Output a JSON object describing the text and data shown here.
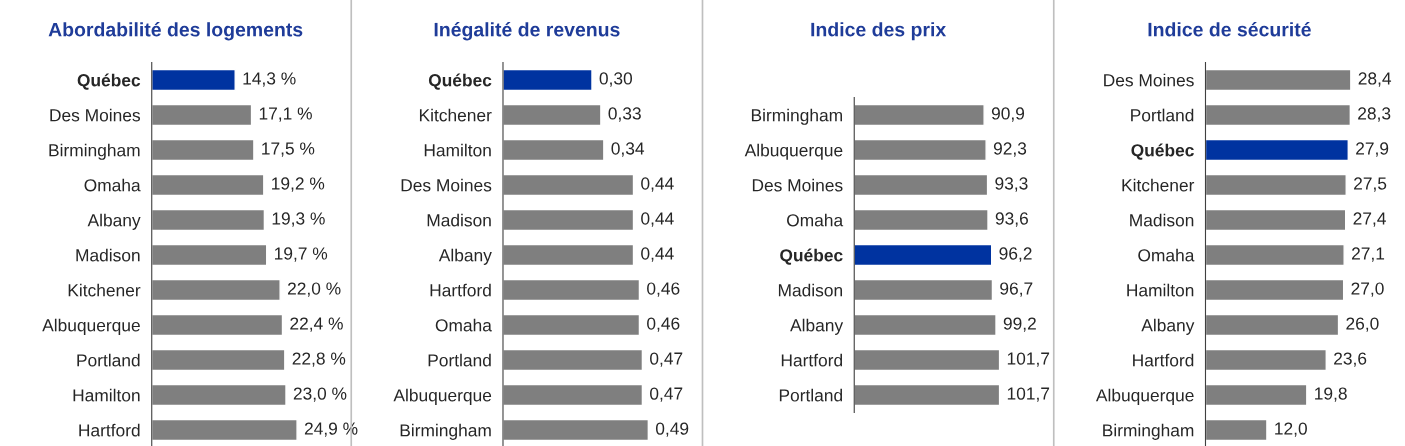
{
  "chart_data": [
    {
      "type": "bar",
      "orientation": "horizontal",
      "title": "Abordabilité des logements",
      "categories": [
        "Québec",
        "Des Moines",
        "Birmingham",
        "Omaha",
        "Albany",
        "Madison",
        "Kitchener",
        "Albuquerque",
        "Portland",
        "Hamilton",
        "Hartford"
      ],
      "values": [
        14.3,
        17.1,
        17.5,
        19.2,
        19.3,
        19.7,
        22.0,
        22.4,
        22.8,
        23.0,
        24.9
      ],
      "value_labels": [
        "14,3 %",
        "17,1 %",
        "17,5 %",
        "19,2 %",
        "19,3 %",
        "19,7 %",
        "22,0 %",
        "22,4 %",
        "22,8 %",
        "23,0 %",
        "24,9 %"
      ],
      "colors": [
        "#0033a0",
        "#7f7f7f",
        "#7f7f7f",
        "#7f7f7f",
        "#7f7f7f",
        "#7f7f7f",
        "#7f7f7f",
        "#7f7f7f",
        "#7f7f7f",
        "#7f7f7f",
        "#7f7f7f"
      ]
    },
    {
      "type": "bar",
      "orientation": "horizontal",
      "title": "Inégalité de revenus",
      "categories": [
        "Québec",
        "Kitchener",
        "Hamilton",
        "Des Moines",
        "Madison",
        "Albany",
        "Hartford",
        "Omaha",
        "Portland",
        "Albuquerque",
        "Birmingham"
      ],
      "values": [
        0.3,
        0.33,
        0.34,
        0.44,
        0.44,
        0.44,
        0.46,
        0.46,
        0.47,
        0.47,
        0.49
      ],
      "value_labels": [
        "0,30",
        "0,33",
        "0,34",
        "0,44",
        "0,44",
        "0,44",
        "0,46",
        "0,46",
        "0,47",
        "0,47",
        "0,49"
      ],
      "colors": [
        "#0033a0",
        "#7f7f7f",
        "#7f7f7f",
        "#7f7f7f",
        "#7f7f7f",
        "#7f7f7f",
        "#7f7f7f",
        "#7f7f7f",
        "#7f7f7f",
        "#7f7f7f",
        "#7f7f7f"
      ]
    },
    {
      "type": "bar",
      "orientation": "horizontal",
      "title": "Indice des prix",
      "categories": [
        "Birmingham",
        "Albuquerque",
        "Des Moines",
        "Omaha",
        "Québec",
        "Madison",
        "Albany",
        "Hartford",
        "Portland"
      ],
      "values": [
        90.9,
        92.3,
        93.3,
        93.6,
        96.2,
        96.7,
        99.2,
        101.7,
        101.7
      ],
      "value_labels": [
        "90,9",
        "92,3",
        "93,3",
        "93,6",
        "96,2",
        "96,7",
        "99,2",
        "101,7",
        "101,7"
      ],
      "colors": [
        "#7f7f7f",
        "#7f7f7f",
        "#7f7f7f",
        "#7f7f7f",
        "#0033a0",
        "#7f7f7f",
        "#7f7f7f",
        "#7f7f7f",
        "#7f7f7f"
      ]
    },
    {
      "type": "bar",
      "orientation": "horizontal",
      "title": "Indice de sécurité",
      "categories": [
        "Des Moines",
        "Portland",
        "Québec",
        "Kitchener",
        "Madison",
        "Omaha",
        "Hamilton",
        "Albany",
        "Hartford",
        "Albuquerque",
        "Birmingham"
      ],
      "values": [
        28.4,
        28.3,
        27.9,
        27.5,
        27.4,
        27.1,
        27.0,
        26.0,
        23.6,
        19.8,
        12.0
      ],
      "value_labels": [
        "28,4",
        "28,3",
        "27,9",
        "27,5",
        "27,4",
        "27,1",
        "27,0",
        "26,0",
        "23,6",
        "19,8",
        "12,0"
      ],
      "colors": [
        "#7f7f7f",
        "#7f7f7f",
        "#0033a0",
        "#7f7f7f",
        "#7f7f7f",
        "#7f7f7f",
        "#7f7f7f",
        "#7f7f7f",
        "#7f7f7f",
        "#7f7f7f",
        "#7f7f7f"
      ]
    }
  ]
}
